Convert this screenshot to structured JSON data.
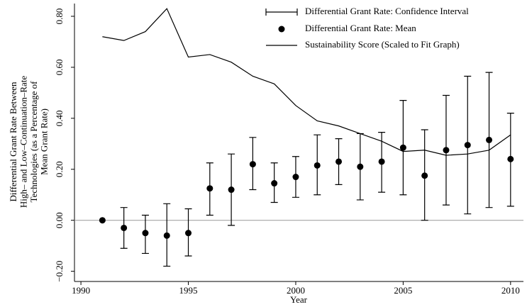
{
  "chart_data": {
    "type": "errorbar",
    "x": [
      1991,
      1992,
      1993,
      1994,
      1995,
      1996,
      1997,
      1998,
      1999,
      2000,
      2001,
      2002,
      2003,
      2004,
      2005,
      2006,
      2007,
      2008,
      2009,
      2010
    ],
    "series": [
      {
        "name": "Differential Grant Rate: Confidence Interval",
        "color": "#000000",
        "low": [
          null,
          -0.11,
          -0.13,
          -0.18,
          -0.14,
          0.02,
          -0.02,
          0.12,
          0.07,
          0.09,
          0.1,
          0.14,
          0.08,
          0.11,
          0.1,
          0.0,
          0.06,
          0.025,
          0.05,
          0.055
        ],
        "high": [
          null,
          0.05,
          0.02,
          0.065,
          0.045,
          0.225,
          0.26,
          0.325,
          0.225,
          0.25,
          0.335,
          0.32,
          0.34,
          0.345,
          0.47,
          0.355,
          0.49,
          0.565,
          0.58,
          0.42
        ]
      },
      {
        "name": "Differential Grant Rate: Mean",
        "color": "#000000",
        "values": [
          0.0,
          -0.03,
          -0.05,
          -0.06,
          -0.05,
          0.125,
          0.12,
          0.22,
          0.145,
          0.17,
          0.215,
          0.23,
          0.21,
          0.23,
          0.285,
          0.175,
          0.275,
          0.295,
          0.315,
          0.24
        ]
      },
      {
        "name": "Sustainability Score (Scaled to Fit Graph)",
        "color": "#000000",
        "values": [
          0.72,
          0.705,
          0.74,
          0.83,
          0.64,
          0.65,
          0.62,
          0.565,
          0.535,
          0.45,
          0.39,
          0.37,
          0.34,
          0.31,
          0.27,
          0.275,
          0.255,
          0.26,
          0.275,
          0.335
        ]
      }
    ],
    "xlabel": "Year",
    "ylabel": [
      "Differential Grant Rate Between",
      "High– and Low–Continuation–Rate",
      "Technologies (as a Percentage of",
      "Mean Grant Rate)"
    ],
    "xlim": [
      1989.7,
      2010.6
    ],
    "ylim": [
      -0.24,
      0.85
    ],
    "xticks": [
      1990,
      1995,
      2000,
      2005,
      2010
    ],
    "yticks": [
      {
        "value": -0.2,
        "label": "−0.20"
      },
      {
        "value": 0,
        "label": "0.00"
      },
      {
        "value": 0.2,
        "label": "0.20"
      },
      {
        "value": 0.4,
        "label": "0.40"
      },
      {
        "value": 0.6,
        "label": "0.60"
      },
      {
        "value": 0.8,
        "label": "0.80"
      }
    ],
    "reference_line": 0,
    "reference_color": "#999999",
    "legend": "top-right"
  }
}
